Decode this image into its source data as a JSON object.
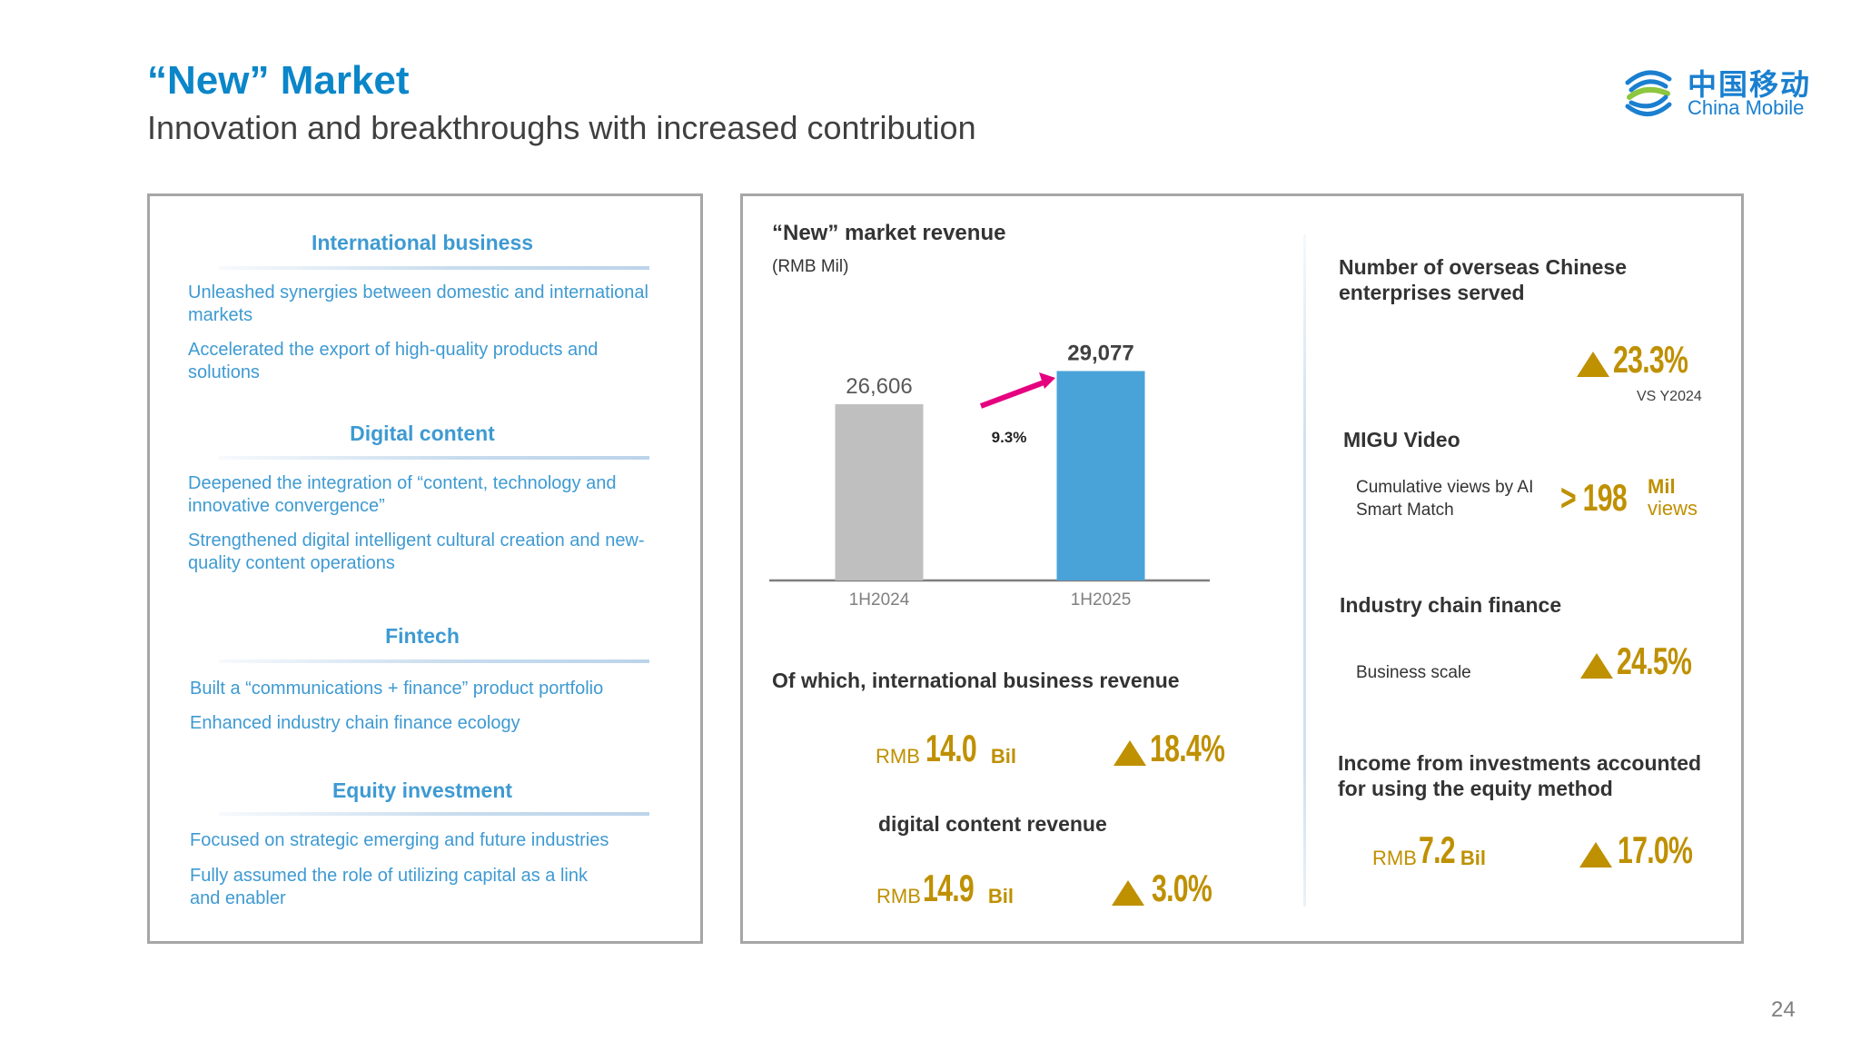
{
  "header": {
    "title": "“New” Market",
    "subtitle": "Innovation and breakthroughs with increased contribution"
  },
  "logo": {
    "chinese": "中国移动",
    "english": "China Mobile",
    "icon": "china-mobile-logo-icon",
    "colors": {
      "blue": "#1a7fcf",
      "green": "#8dc63f"
    }
  },
  "left_panel": {
    "sections": [
      {
        "heading": "International business",
        "bullets": [
          "Unleashed synergies between domestic and international markets",
          "Accelerated the export of high-quality products and solutions"
        ]
      },
      {
        "heading": "Digital content",
        "bullets": [
          "Deepened the integration of “content, technology and innovative convergence”",
          "Strengthened digital intelligent cultural creation and new-quality content operations"
        ]
      },
      {
        "heading": "Fintech",
        "bullets": [
          "Built a “communications + finance” product portfolio",
          "Enhanced industry chain finance ecology"
        ]
      },
      {
        "heading": "Equity investment",
        "bullets": [
          "Focused on strategic emerging and future industries",
          "Fully assumed the role of utilizing capital as a link and enabler"
        ]
      }
    ]
  },
  "chart_data": {
    "type": "bar",
    "title": "“New” market revenue",
    "subtitle": "(RMB Mil)",
    "categories": [
      "1H2024",
      "1H2025"
    ],
    "values": [
      26606,
      29077
    ],
    "value_labels": [
      "26,606",
      "29,077"
    ],
    "colors": [
      "#bfbfbf",
      "#4aa3d8"
    ],
    "growth_label": "9.3%",
    "growth_arrow_color": "#e5007f",
    "xlabel": "",
    "ylabel": "",
    "ylim": [
      13500,
      31000
    ],
    "grid": false,
    "legend": "none"
  },
  "sub_metrics": {
    "intl": {
      "label": "Of which, international business revenue",
      "prefix": "RMB",
      "value": "14.0",
      "unit": "Bil",
      "growth": "18.4%"
    },
    "digital": {
      "label": "digital content revenue",
      "prefix": "RMB",
      "value": "14.9",
      "unit": "Bil",
      "growth": "3.0%"
    }
  },
  "right_metrics": {
    "overseas": {
      "label": "Number of overseas Chinese enterprises served",
      "growth": "23.3%",
      "note": "VS Y2024"
    },
    "migu": {
      "label": "MIGU Video",
      "sub_label": "Cumulative views by AI Smart Match",
      "value": "> 198",
      "unit_line1": "Mil",
      "unit_line2": "views"
    },
    "chain_finance": {
      "label": "Industry chain finance",
      "sub_label": "Business scale",
      "growth": "24.5%"
    },
    "equity_income": {
      "label": "Income from investments accounted for using the equity method",
      "prefix": "RMB",
      "value": "7.2",
      "unit": "Bil",
      "growth": "17.0%"
    }
  },
  "accent_colors": {
    "gold": "#bf9000",
    "title_blue": "#0b86c9",
    "section_blue": "#3e9ad2"
  },
  "page_number": "24"
}
